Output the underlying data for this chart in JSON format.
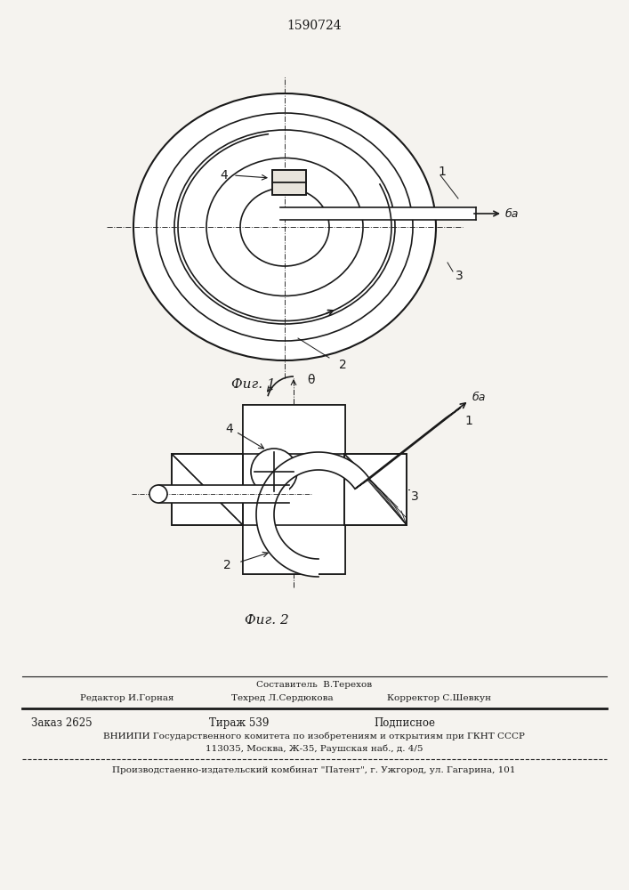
{
  "patent_number": "1590724",
  "bg_color": "#f5f3ef",
  "line_color": "#1a1a1a",
  "fig1_caption": "Фиг. 1",
  "fig2_caption": "Фиг. 2",
  "label_1": "1",
  "label_2": "2",
  "label_3": "3",
  "label_4": "4",
  "label_8": "θ",
  "label_6a": "ба",
  "footer_line1": "Составитель  В.Терехов",
  "footer_line2a": "Редактор И.Горная",
  "footer_line2b": "Техред Л.Сердюкова",
  "footer_line2c": "Корректор С.Шевкун",
  "footer_line3a": "Заказ 2625",
  "footer_line3b": "Тираж 539",
  "footer_line3c": "Подписное",
  "footer_line4": "ВНИИПИ Государственного комитета по изобретениям и открытиям при ГКНТ СССР",
  "footer_line5": "113035, Москва, Ж-35, Раушская наб., д. 4/5",
  "footer_line6": "Производстаенно-издательский комбинат \"Патент\", г. Ужгород, ул. Гагарина, 101"
}
